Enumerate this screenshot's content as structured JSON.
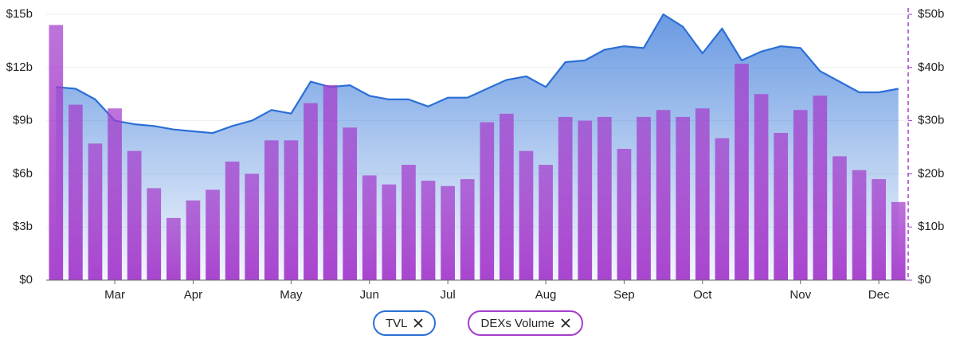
{
  "chart_data": {
    "type": "bar",
    "categories": [
      null,
      null,
      null,
      "Mar",
      null,
      null,
      null,
      "Apr",
      null,
      null,
      null,
      null,
      "May",
      null,
      null,
      null,
      "Jun",
      null,
      null,
      null,
      "Jul",
      null,
      null,
      null,
      null,
      "Aug",
      null,
      null,
      null,
      "Sep",
      null,
      null,
      null,
      "Oct",
      null,
      null,
      null,
      null,
      "Nov",
      null,
      null,
      null,
      "Dec",
      null
    ],
    "series": [
      {
        "name": "TVL",
        "type": "area",
        "color": "#2a6fd6",
        "axis": "y",
        "values": [
          10.9,
          10.8,
          10.2,
          9.0,
          8.8,
          8.7,
          8.5,
          8.4,
          8.3,
          8.7,
          9.0,
          9.6,
          9.4,
          11.2,
          10.9,
          11.0,
          10.4,
          10.2,
          10.2,
          9.8,
          10.3,
          10.3,
          10.8,
          11.3,
          11.5,
          10.9,
          12.3,
          12.4,
          13.0,
          13.2,
          13.1,
          15.0,
          14.3,
          12.8,
          14.2,
          12.4,
          12.9,
          13.2,
          13.1,
          11.8,
          11.2,
          10.6,
          10.6,
          10.8
        ]
      },
      {
        "name": "DEXs Volume",
        "type": "bar",
        "color": "#a43ccc",
        "axis": "y2",
        "values": [
          48,
          33,
          25.7,
          32.3,
          24.3,
          17.3,
          11.7,
          15,
          17,
          22.3,
          20,
          26.3,
          26.3,
          33.3,
          36.7,
          28.7,
          19.7,
          18,
          21.7,
          18.7,
          17.7,
          19,
          29.7,
          31.3,
          24.3,
          21.7,
          30.7,
          30,
          30.7,
          24.7,
          30.7,
          32,
          30.7,
          32.3,
          26.7,
          40.7,
          35,
          27.7,
          32,
          34.7,
          23.3,
          20.7,
          19,
          14.7
        ]
      }
    ],
    "ylim": [
      0,
      15
    ],
    "yticks": [
      {
        "value": 0,
        "label": "$0"
      },
      {
        "value": 3,
        "label": "$3b"
      },
      {
        "value": 6,
        "label": "$6b"
      },
      {
        "value": 9,
        "label": "$9b"
      },
      {
        "value": 12,
        "label": "$12b"
      },
      {
        "value": 15,
        "label": "$15b"
      }
    ],
    "y2lim": [
      0,
      50
    ],
    "y2ticks": [
      {
        "value": 0,
        "label": "$0"
      },
      {
        "value": 10,
        "label": "$10b"
      },
      {
        "value": 20,
        "label": "$20b"
      },
      {
        "value": 30,
        "label": "$30b"
      },
      {
        "value": 40,
        "label": "$40b"
      },
      {
        "value": 50,
        "label": "$50b"
      }
    ],
    "grid": true
  }
}
